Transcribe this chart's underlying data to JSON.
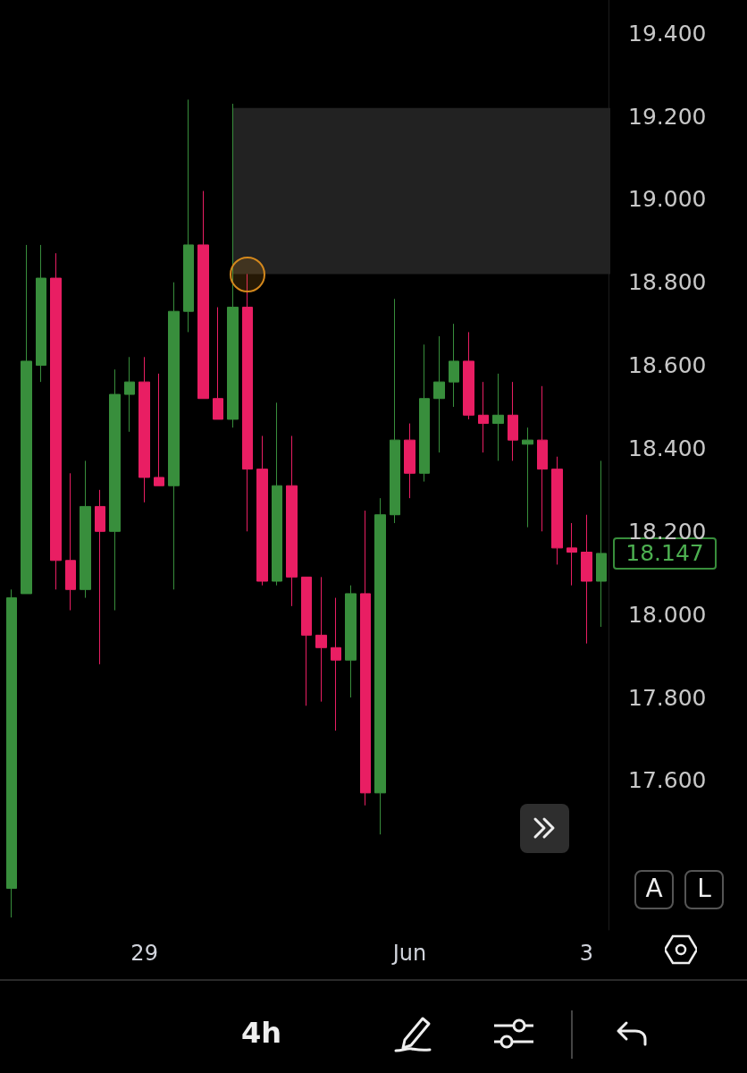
{
  "chart_data": {
    "type": "candlestick",
    "categories": [
      null,
      null,
      null,
      null,
      null,
      null,
      null,
      null,
      null,
      "29",
      null,
      null,
      null,
      null,
      null,
      null,
      null,
      null,
      null,
      null,
      null,
      null,
      null,
      null,
      null,
      null,
      null,
      "Jun",
      null,
      null,
      null,
      null,
      null,
      null,
      null,
      null,
      null,
      null,
      null,
      "3",
      null
    ],
    "ohlc": [
      [
        17.34,
        18.06,
        17.27,
        18.04
      ],
      [
        18.05,
        18.89,
        18.05,
        18.61
      ],
      [
        18.6,
        18.89,
        18.56,
        18.81
      ],
      [
        18.81,
        18.87,
        18.06,
        18.13
      ],
      [
        18.13,
        18.34,
        18.01,
        18.06
      ],
      [
        18.06,
        18.37,
        18.04,
        18.26
      ],
      [
        18.26,
        18.3,
        17.88,
        18.2
      ],
      [
        18.2,
        18.59,
        18.01,
        18.53
      ],
      [
        18.53,
        18.62,
        18.44,
        18.56
      ],
      [
        18.56,
        18.62,
        18.27,
        18.33
      ],
      [
        18.33,
        18.58,
        18.31,
        18.31
      ],
      [
        18.31,
        18.8,
        18.06,
        18.73
      ],
      [
        18.73,
        19.24,
        18.68,
        18.89
      ],
      [
        18.89,
        19.02,
        18.52,
        18.52
      ],
      [
        18.52,
        18.74,
        18.47,
        18.47
      ],
      [
        18.47,
        19.23,
        18.45,
        18.74
      ],
      [
        18.74,
        18.82,
        18.2,
        18.35
      ],
      [
        18.35,
        18.43,
        18.07,
        18.08
      ],
      [
        18.08,
        18.51,
        18.07,
        18.31
      ],
      [
        18.31,
        18.43,
        18.02,
        18.09
      ],
      [
        18.09,
        18.09,
        17.78,
        17.95
      ],
      [
        17.95,
        18.09,
        17.79,
        17.92
      ],
      [
        17.92,
        18.04,
        17.72,
        17.89
      ],
      [
        17.89,
        18.07,
        17.8,
        18.05
      ],
      [
        18.05,
        18.25,
        17.54,
        17.57
      ],
      [
        17.57,
        18.28,
        17.47,
        18.24
      ],
      [
        18.24,
        18.76,
        18.22,
        18.42
      ],
      [
        18.42,
        18.46,
        18.28,
        18.34
      ],
      [
        18.34,
        18.65,
        18.32,
        18.52
      ],
      [
        18.52,
        18.67,
        18.39,
        18.56
      ],
      [
        18.56,
        18.7,
        18.5,
        18.61
      ],
      [
        18.61,
        18.68,
        18.47,
        18.48
      ],
      [
        18.48,
        18.56,
        18.39,
        18.46
      ],
      [
        18.46,
        18.58,
        18.37,
        18.48
      ],
      [
        18.48,
        18.56,
        18.37,
        18.42
      ],
      [
        18.41,
        18.45,
        18.21,
        18.42
      ],
      [
        18.42,
        18.55,
        18.2,
        18.35
      ],
      [
        18.35,
        18.38,
        18.12,
        18.16
      ],
      [
        18.16,
        18.22,
        18.07,
        18.15
      ],
      [
        18.15,
        18.24,
        17.93,
        18.08
      ],
      [
        18.08,
        18.37,
        17.97,
        18.147
      ]
    ],
    "colors": [
      "#388e3c",
      "#388e3c",
      "#388e3c",
      "#e91e63",
      "#e91e63",
      "#388e3c",
      "#e91e63",
      "#388e3c",
      "#388e3c",
      "#e91e63",
      "#e91e63",
      "#388e3c",
      "#388e3c",
      "#e91e63",
      "#e91e63",
      "#388e3c",
      "#e91e63",
      "#e91e63",
      "#388e3c",
      "#e91e63",
      "#e91e63",
      "#e91e63",
      "#e91e63",
      "#388e3c",
      "#e91e63",
      "#388e3c",
      "#388e3c",
      "#e91e63",
      "#388e3c",
      "#388e3c",
      "#388e3c",
      "#e91e63",
      "#e91e63",
      "#388e3c",
      "#e91e63",
      "#388e3c",
      "#e91e63",
      "#e91e63",
      "#e91e63",
      "#e91e63",
      "#388e3c"
    ],
    "ylim": [
      17.24,
      19.48
    ],
    "yticks": [
      {
        "value": 17.6,
        "label": "17.600"
      },
      {
        "value": 17.8,
        "label": "17.800"
      },
      {
        "value": 18,
        "label": "18.000"
      },
      {
        "value": 18.2,
        "label": "18.200"
      },
      {
        "value": 18.4,
        "label": "18.400"
      },
      {
        "value": 18.6,
        "label": "18.600"
      },
      {
        "value": 18.8,
        "label": "18.800"
      },
      {
        "value": 19,
        "label": "19.000"
      },
      {
        "value": 19.2,
        "label": "19.200"
      },
      {
        "value": 19.4,
        "label": "19.400"
      }
    ],
    "bands": [
      {
        "axis": "y",
        "from": 18.82,
        "to": 19.22,
        "color": "#222222"
      }
    ],
    "annotations": [
      "18.147",
      "4h",
      "A",
      "L"
    ]
  }
}
